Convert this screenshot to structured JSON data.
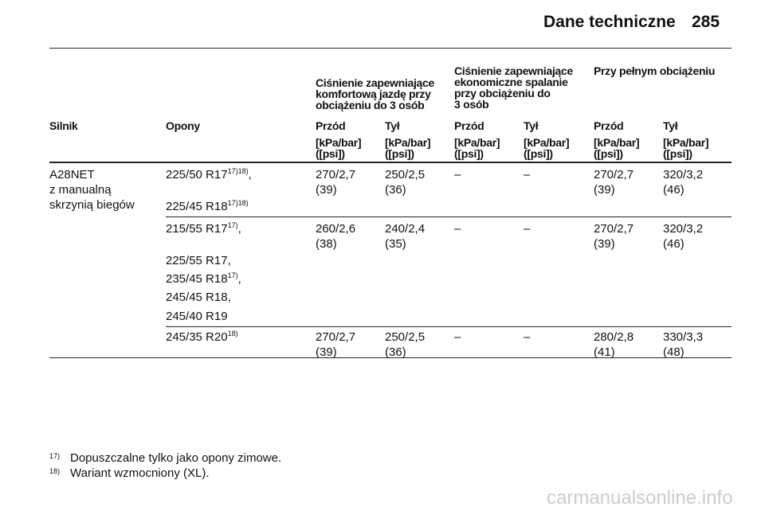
{
  "header": {
    "title": "Dane techniczne",
    "page": "285"
  },
  "table": {
    "group_headers": [
      [
        "Ciśnienie zapewniające",
        "komfortową jazdę przy",
        "obciążeniu do 3 osób"
      ],
      [
        "Ciśnienie zapewniające",
        "ekonomiczne spalanie",
        "przy obciążeniu do",
        "3 osób"
      ],
      [
        "Przy pełnym obciążeniu"
      ]
    ],
    "columns": [
      "Silnik",
      "Opony",
      "Przód",
      "Tył",
      "Przód",
      "Tył",
      "Przód",
      "Tył"
    ],
    "units": [
      [
        "[kPa/bar]",
        "([psi])"
      ],
      [
        "[kPa/bar]",
        "([psi])"
      ],
      [
        "[kPa/bar]",
        "([psi])"
      ],
      [
        "[kPa/bar]",
        "([psi])"
      ],
      [
        "[kPa/bar]",
        "([psi])"
      ],
      [
        "[kPa/bar]",
        "([psi])"
      ]
    ],
    "rows": [
      {
        "engine": [
          "A28NET",
          "z manualną",
          "skrzynią biegów"
        ],
        "tires": [
          {
            "text": "225/50 R17",
            "sup": "17)18)",
            "suffix": ","
          },
          {
            "text": "225/45 R18",
            "sup": "17)18)"
          }
        ],
        "values": [
          [
            "270/2,7",
            "(39)"
          ],
          [
            "250/2,5",
            "(36)"
          ],
          [
            "–"
          ],
          [
            "–"
          ],
          [
            "270/2,7",
            "(39)"
          ],
          [
            "320/3,2",
            "(46)"
          ]
        ]
      },
      {
        "tires": [
          {
            "text": "215/55 R17",
            "sup": "17)",
            "suffix": ","
          },
          {
            "text": "225/55 R17,"
          },
          {
            "text": "235/45 R18",
            "sup": "17)",
            "suffix": ","
          },
          {
            "text": "245/45 R18,"
          },
          {
            "text": "245/40 R19"
          }
        ],
        "values": [
          [
            "260/2,6",
            "(38)"
          ],
          [
            "240/2,4",
            "(35)"
          ],
          [
            "–"
          ],
          [
            "–"
          ],
          [
            "270/2,7",
            "(39)"
          ],
          [
            "320/3,2",
            "(46)"
          ]
        ]
      },
      {
        "tires": [
          {
            "text": "245/35 R20",
            "sup": "18)"
          }
        ],
        "values": [
          [
            "270/2,7",
            "(39)"
          ],
          [
            "250/2,5",
            "(36)"
          ],
          [
            "–"
          ],
          [
            "–"
          ],
          [
            "280/2,8",
            "(41)"
          ],
          [
            "330/3,3",
            "(48)"
          ]
        ]
      }
    ]
  },
  "footnotes": [
    {
      "mark": "17)",
      "text": "Dopuszczalne tylko jako opony zimowe."
    },
    {
      "mark": "18)",
      "text": "Wariant wzmocniony (XL)."
    }
  ],
  "watermark": "carmanualsonline.info"
}
